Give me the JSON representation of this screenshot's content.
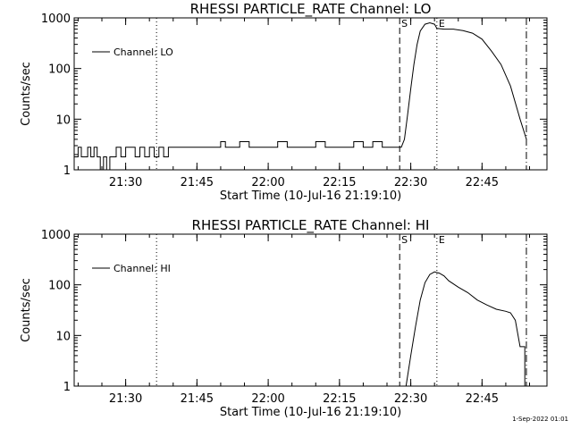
{
  "footer": {
    "date_stamp": "1-Sep-2022 01:01"
  },
  "chart_data": [
    {
      "type": "line",
      "title": "RHESSI PARTICLE_RATE Channel: LO",
      "xlabel": "Start Time (10-Jul-16 21:19:10)",
      "ylabel": "Counts/sec",
      "y_scale": "log",
      "ylim": [
        1,
        1000
      ],
      "xlim": [
        "21:19:10",
        "22:58:40"
      ],
      "x_ticks": [
        "21:30",
        "21:45",
        "22:00",
        "22:15",
        "22:30",
        "22:45"
      ],
      "y_ticks": [
        "1",
        "10",
        "100",
        "1000"
      ],
      "legend": {
        "placement": "top-left",
        "entries": [
          "Channel: LO"
        ]
      },
      "markers": [
        {
          "label": "",
          "time": "21:36:30",
          "style": "dotted"
        },
        {
          "label": "S",
          "time": "22:27:40",
          "style": "dashed"
        },
        {
          "label": "E",
          "time": "22:35:30",
          "style": "dotted"
        },
        {
          "label": "",
          "time": "22:54:20",
          "style": "dash-dot"
        }
      ],
      "series": [
        {
          "name": "Channel: LO",
          "x": [
            "21:19:10",
            "21:20:00",
            "21:20:40",
            "21:21:20",
            "21:22:00",
            "21:22:40",
            "21:23:20",
            "21:24:00",
            "21:24:40",
            "21:25:20",
            "21:26:00",
            "21:26:40",
            "21:27:20",
            "21:28:00",
            "21:29:00",
            "21:30:00",
            "21:31:00",
            "21:32:00",
            "21:33:00",
            "21:34:00",
            "21:35:00",
            "21:36:00",
            "21:37:00",
            "21:38:00",
            "21:39:00",
            "21:40:00",
            "21:42:00",
            "21:44:00",
            "21:46:00",
            "21:48:00",
            "21:50:00",
            "21:51:00",
            "21:52:00",
            "21:54:00",
            "21:56:00",
            "21:58:00",
            "22:00:00",
            "22:02:00",
            "22:04:00",
            "22:06:00",
            "22:08:00",
            "22:10:00",
            "22:12:00",
            "22:14:00",
            "22:16:00",
            "22:18:00",
            "22:20:00",
            "22:22:00",
            "22:24:00",
            "22:26:00",
            "22:28:00",
            "22:28:40",
            "22:29:20",
            "22:30:00",
            "22:30:40",
            "22:31:20",
            "22:32:00",
            "22:33:00",
            "22:34:00",
            "22:35:00",
            "22:35:30",
            "22:37:00",
            "22:39:00",
            "22:41:00",
            "22:43:00",
            "22:45:00",
            "22:47:00",
            "22:49:00",
            "22:51:00",
            "22:53:00",
            "22:54:20"
          ],
          "y": [
            1.8,
            2.8,
            1.8,
            1.8,
            2.8,
            1.8,
            2.8,
            1.8,
            1.0,
            1.8,
            1.0,
            1.8,
            1.8,
            2.8,
            1.8,
            2.8,
            2.8,
            1.8,
            2.8,
            1.8,
            2.8,
            1.8,
            2.8,
            1.8,
            2.8,
            2.8,
            2.8,
            2.8,
            2.8,
            2.8,
            3.6,
            2.8,
            2.8,
            3.6,
            2.8,
            2.8,
            2.8,
            3.6,
            2.8,
            2.8,
            2.8,
            3.6,
            2.8,
            2.8,
            2.8,
            3.6,
            2.8,
            3.6,
            2.8,
            2.8,
            2.8,
            4,
            12,
            40,
            120,
            300,
            550,
            750,
            800,
            750,
            620,
            600,
            600,
            560,
            500,
            380,
            220,
            120,
            45,
            10,
            4
          ]
        }
      ]
    },
    {
      "type": "line",
      "title": "RHESSI PARTICLE_RATE Channel: HI",
      "xlabel": "Start Time (10-Jul-16 21:19:10)",
      "ylabel": "Counts/sec",
      "y_scale": "log",
      "ylim": [
        1,
        1000
      ],
      "xlim": [
        "21:19:10",
        "22:58:40"
      ],
      "x_ticks": [
        "21:30",
        "21:45",
        "22:00",
        "22:15",
        "22:30",
        "22:45"
      ],
      "y_ticks": [
        "1",
        "10",
        "100",
        "1000"
      ],
      "legend": {
        "placement": "top-left",
        "entries": [
          "Channel: HI"
        ]
      },
      "markers": [
        {
          "label": "",
          "time": "21:36:30",
          "style": "dotted"
        },
        {
          "label": "S",
          "time": "22:27:40",
          "style": "dashed"
        },
        {
          "label": "E",
          "time": "22:35:30",
          "style": "dotted"
        },
        {
          "label": "",
          "time": "22:54:20",
          "style": "dash-dot"
        }
      ],
      "series": [
        {
          "name": "Channel: HI",
          "x": [
            "22:29:00",
            "22:30:00",
            "22:31:00",
            "22:32:00",
            "22:33:00",
            "22:34:00",
            "22:35:00",
            "22:36:00",
            "22:37:00",
            "22:38:00",
            "22:40:00",
            "22:42:00",
            "22:44:00",
            "22:46:00",
            "22:48:00",
            "22:50:00",
            "22:51:00",
            "22:52:00",
            "22:53:00",
            "22:54:00"
          ],
          "y": [
            1,
            4,
            15,
            50,
            110,
            160,
            180,
            170,
            150,
            120,
            90,
            70,
            50,
            40,
            33,
            30,
            28,
            20,
            6,
            1
          ]
        }
      ]
    }
  ]
}
